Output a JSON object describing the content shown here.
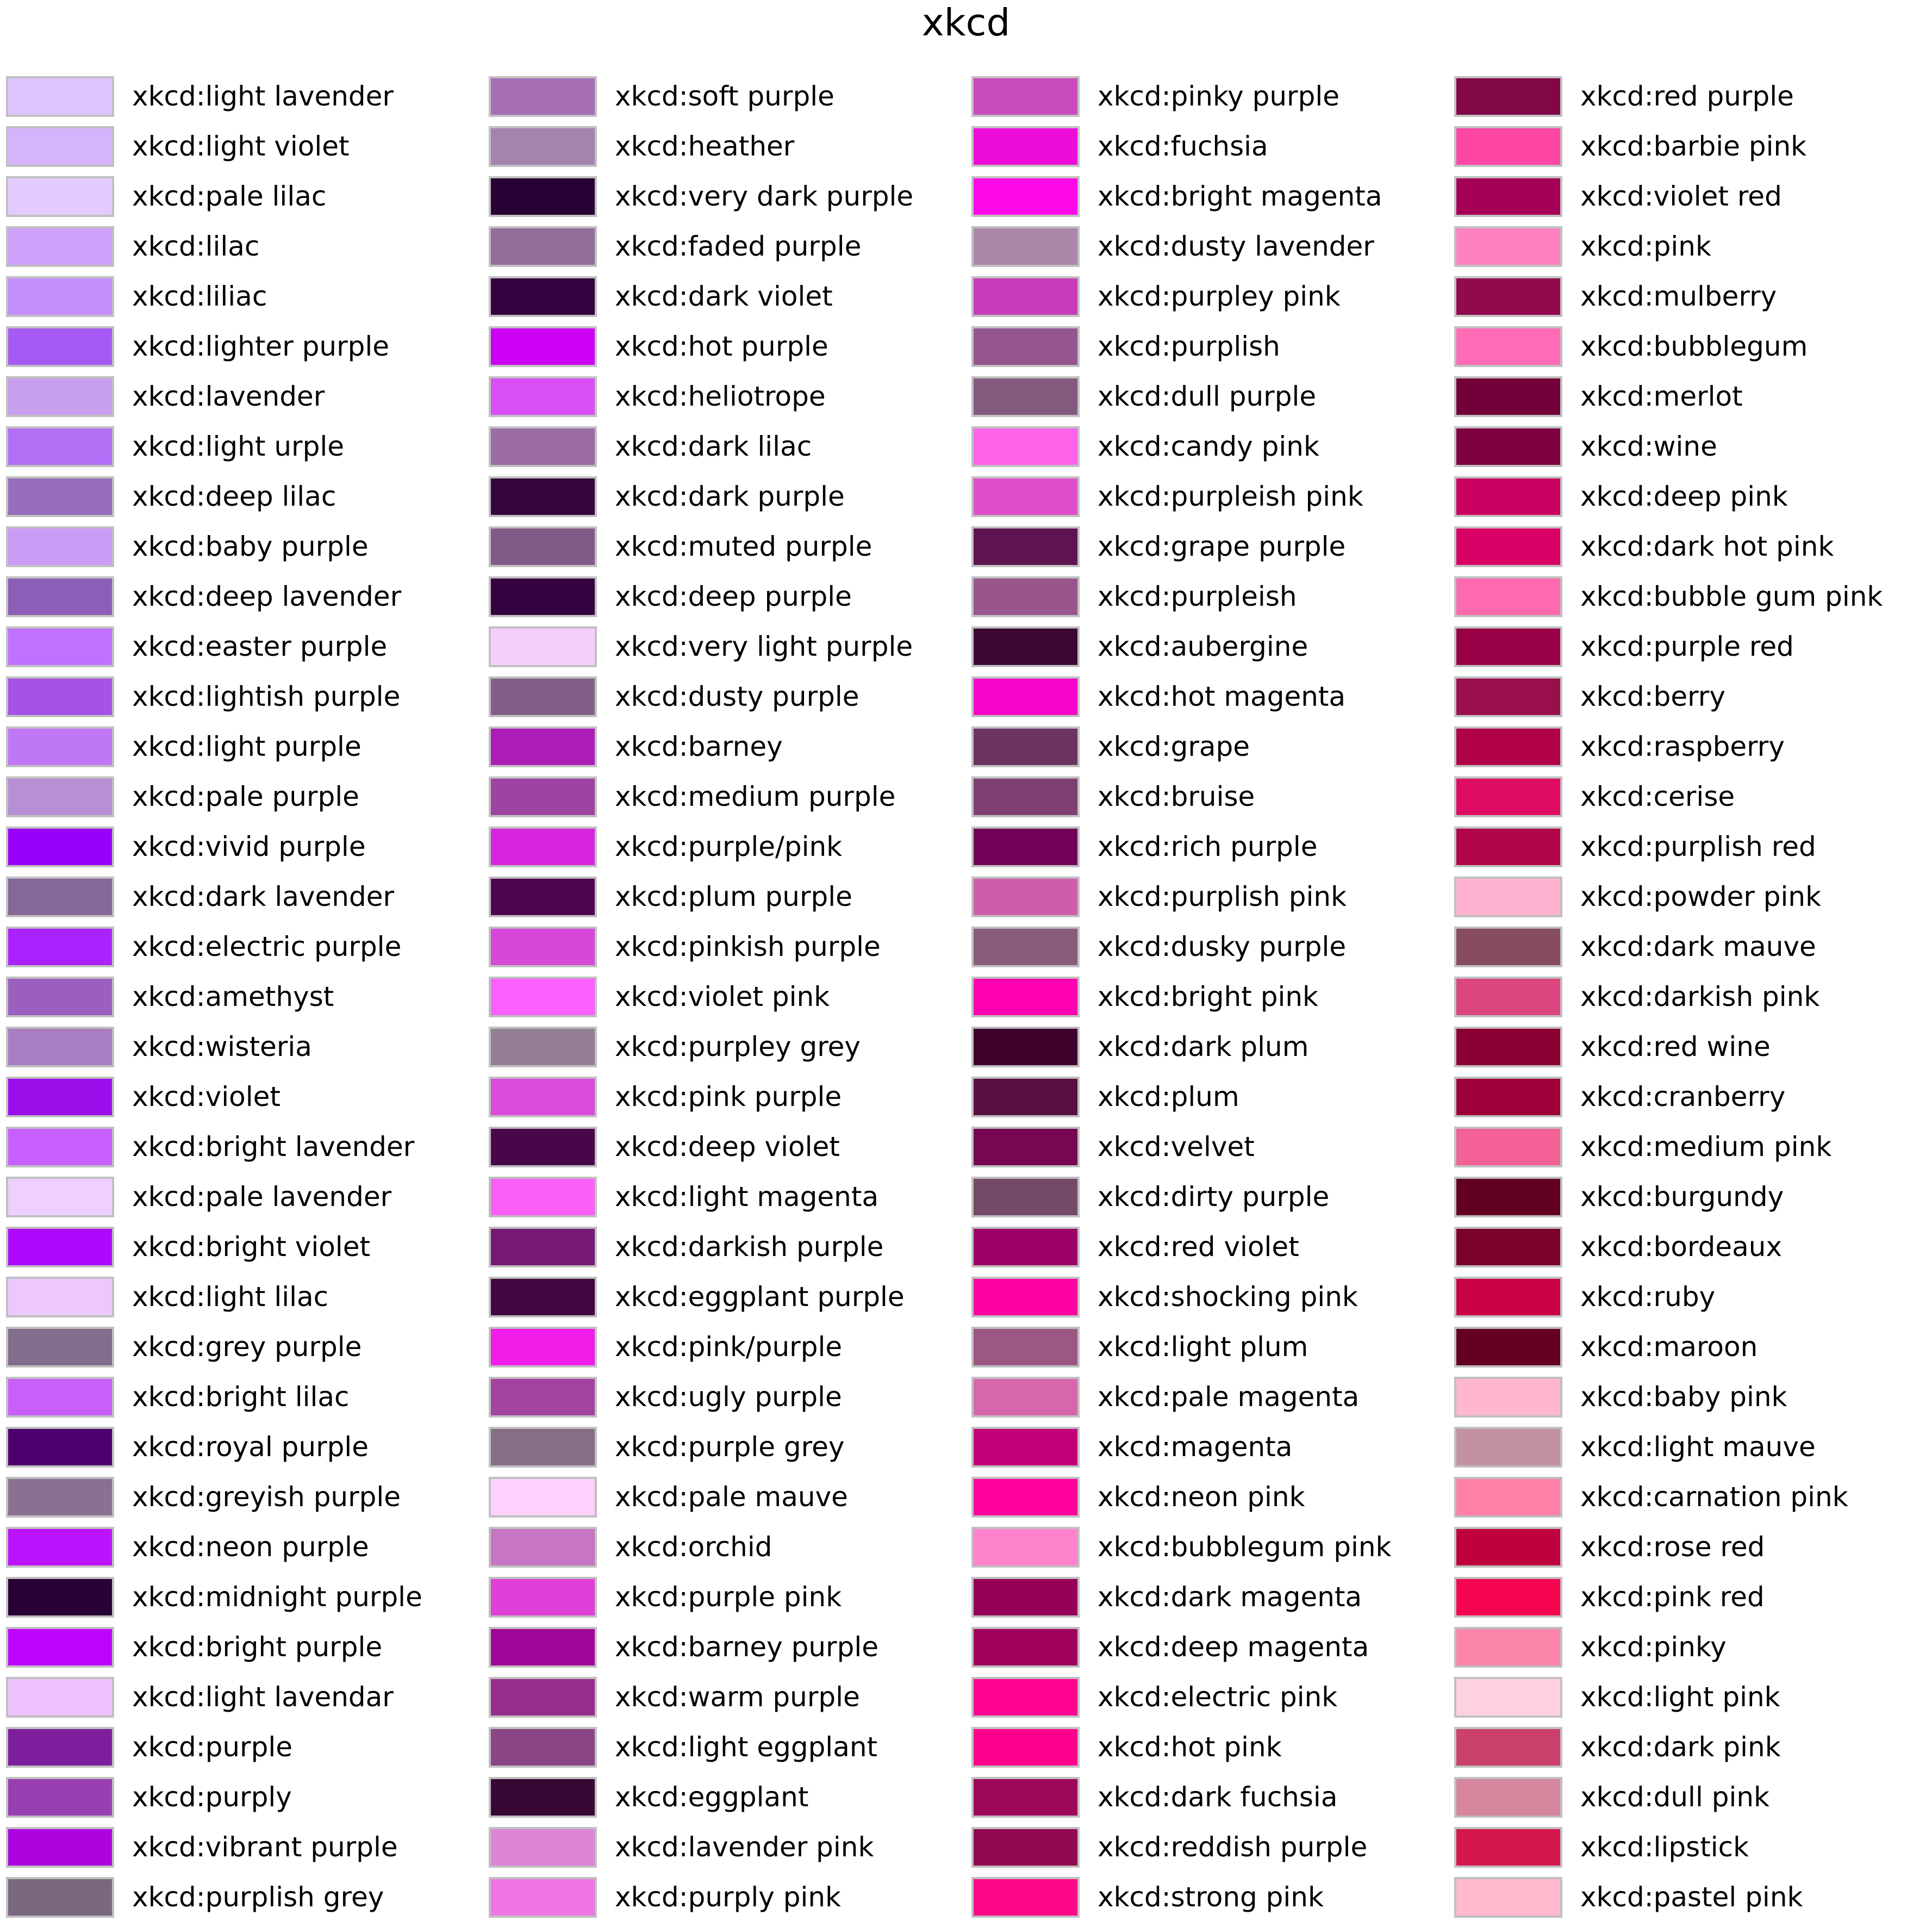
{
  "title": "xkcd",
  "chart_data": {
    "type": "table",
    "title": "xkcd",
    "columns": [
      [
        {
          "name": "xkcd:light lavender",
          "color": "#dfc5fe"
        },
        {
          "name": "xkcd:light violet",
          "color": "#d6b4fc"
        },
        {
          "name": "xkcd:pale lilac",
          "color": "#e4cbff"
        },
        {
          "name": "xkcd:lilac",
          "color": "#cea2fd"
        },
        {
          "name": "xkcd:liliac",
          "color": "#c48efd"
        },
        {
          "name": "xkcd:lighter purple",
          "color": "#a55af4"
        },
        {
          "name": "xkcd:lavender",
          "color": "#c79fef"
        },
        {
          "name": "xkcd:light urple",
          "color": "#b36ff6"
        },
        {
          "name": "xkcd:deep lilac",
          "color": "#966ebd"
        },
        {
          "name": "xkcd:baby purple",
          "color": "#ca9bf7"
        },
        {
          "name": "xkcd:deep lavender",
          "color": "#8d5eb7"
        },
        {
          "name": "xkcd:easter purple",
          "color": "#c071fe"
        },
        {
          "name": "xkcd:lightish purple",
          "color": "#a552e6"
        },
        {
          "name": "xkcd:light purple",
          "color": "#bf77f6"
        },
        {
          "name": "xkcd:pale purple",
          "color": "#b790d4"
        },
        {
          "name": "xkcd:vivid purple",
          "color": "#9900fa"
        },
        {
          "name": "xkcd:dark lavender",
          "color": "#856798"
        },
        {
          "name": "xkcd:electric purple",
          "color": "#aa23ff"
        },
        {
          "name": "xkcd:amethyst",
          "color": "#9b5fc0"
        },
        {
          "name": "xkcd:wisteria",
          "color": "#a87dc2"
        },
        {
          "name": "xkcd:violet",
          "color": "#9a0eea"
        },
        {
          "name": "xkcd:bright lavender",
          "color": "#c760ff"
        },
        {
          "name": "xkcd:pale lavender",
          "color": "#eecffe"
        },
        {
          "name": "xkcd:bright violet",
          "color": "#ad0afd"
        },
        {
          "name": "xkcd:light lilac",
          "color": "#edc8ff"
        },
        {
          "name": "xkcd:grey purple",
          "color": "#826d8c"
        },
        {
          "name": "xkcd:bright lilac",
          "color": "#c95efb"
        },
        {
          "name": "xkcd:royal purple",
          "color": "#4b006e"
        },
        {
          "name": "xkcd:greyish purple",
          "color": "#887191"
        },
        {
          "name": "xkcd:neon purple",
          "color": "#bc13fe"
        },
        {
          "name": "xkcd:midnight purple",
          "color": "#280137"
        },
        {
          "name": "xkcd:bright purple",
          "color": "#be03fd"
        },
        {
          "name": "xkcd:light lavendar",
          "color": "#efc0fe"
        },
        {
          "name": "xkcd:purple",
          "color": "#7e1e9c"
        },
        {
          "name": "xkcd:purply",
          "color": "#983fb2"
        },
        {
          "name": "xkcd:vibrant purple",
          "color": "#ad03de"
        },
        {
          "name": "xkcd:purplish grey",
          "color": "#7a687f"
        }
      ],
      [
        {
          "name": "xkcd:soft purple",
          "color": "#a66fb5"
        },
        {
          "name": "xkcd:heather",
          "color": "#a484ac"
        },
        {
          "name": "xkcd:very dark purple",
          "color": "#2a0134"
        },
        {
          "name": "xkcd:faded purple",
          "color": "#916e99"
        },
        {
          "name": "xkcd:dark violet",
          "color": "#34013f"
        },
        {
          "name": "xkcd:hot purple",
          "color": "#cb00f5"
        },
        {
          "name": "xkcd:heliotrope",
          "color": "#d94ff5"
        },
        {
          "name": "xkcd:dark lilac",
          "color": "#9c6da5"
        },
        {
          "name": "xkcd:dark purple",
          "color": "#35063e"
        },
        {
          "name": "xkcd:muted purple",
          "color": "#805b87"
        },
        {
          "name": "xkcd:deep purple",
          "color": "#36013f"
        },
        {
          "name": "xkcd:very light purple",
          "color": "#f6cefc"
        },
        {
          "name": "xkcd:dusty purple",
          "color": "#825f87"
        },
        {
          "name": "xkcd:barney",
          "color": "#ac1db8"
        },
        {
          "name": "xkcd:medium purple",
          "color": "#9e43a2"
        },
        {
          "name": "xkcd:purple/pink",
          "color": "#d725de"
        },
        {
          "name": "xkcd:plum purple",
          "color": "#4e0550"
        },
        {
          "name": "xkcd:pinkish purple",
          "color": "#d648d7"
        },
        {
          "name": "xkcd:violet pink",
          "color": "#fb5ffc"
        },
        {
          "name": "xkcd:purpley grey",
          "color": "#947e94"
        },
        {
          "name": "xkcd:pink purple",
          "color": "#db4bda"
        },
        {
          "name": "xkcd:deep violet",
          "color": "#490648"
        },
        {
          "name": "xkcd:light magenta",
          "color": "#fa5ff7"
        },
        {
          "name": "xkcd:darkish purple",
          "color": "#751973"
        },
        {
          "name": "xkcd:eggplant purple",
          "color": "#430541"
        },
        {
          "name": "xkcd:pink/purple",
          "color": "#ef1de7"
        },
        {
          "name": "xkcd:ugly purple",
          "color": "#a442a0"
        },
        {
          "name": "xkcd:purple grey",
          "color": "#866f85"
        },
        {
          "name": "xkcd:pale mauve",
          "color": "#fed0fc"
        },
        {
          "name": "xkcd:orchid",
          "color": "#c875c4"
        },
        {
          "name": "xkcd:purple pink",
          "color": "#e03fd8"
        },
        {
          "name": "xkcd:barney purple",
          "color": "#a00498"
        },
        {
          "name": "xkcd:warm purple",
          "color": "#952e8f"
        },
        {
          "name": "xkcd:light eggplant",
          "color": "#894585"
        },
        {
          "name": "xkcd:eggplant",
          "color": "#380835"
        },
        {
          "name": "xkcd:lavender pink",
          "color": "#dd85d7"
        },
        {
          "name": "xkcd:purply pink",
          "color": "#f075e6"
        }
      ],
      [
        {
          "name": "xkcd:pinky purple",
          "color": "#c94cbe"
        },
        {
          "name": "xkcd:fuchsia",
          "color": "#ed0dd9"
        },
        {
          "name": "xkcd:bright magenta",
          "color": "#ff08e8"
        },
        {
          "name": "xkcd:dusty lavender",
          "color": "#ac86a8"
        },
        {
          "name": "xkcd:purpley pink",
          "color": "#c83cb9"
        },
        {
          "name": "xkcd:purplish",
          "color": "#94568c"
        },
        {
          "name": "xkcd:dull purple",
          "color": "#84597e"
        },
        {
          "name": "xkcd:candy pink",
          "color": "#ff63e9"
        },
        {
          "name": "xkcd:purpleish pink",
          "color": "#df4ec8"
        },
        {
          "name": "xkcd:grape purple",
          "color": "#5d1451"
        },
        {
          "name": "xkcd:purpleish",
          "color": "#98568d"
        },
        {
          "name": "xkcd:aubergine",
          "color": "#3d0734"
        },
        {
          "name": "xkcd:hot magenta",
          "color": "#f504c9"
        },
        {
          "name": "xkcd:grape",
          "color": "#6c3461"
        },
        {
          "name": "xkcd:bruise",
          "color": "#7e4071"
        },
        {
          "name": "xkcd:rich purple",
          "color": "#720058"
        },
        {
          "name": "xkcd:purplish pink",
          "color": "#ce5dae"
        },
        {
          "name": "xkcd:dusky purple",
          "color": "#895b7b"
        },
        {
          "name": "xkcd:bright pink",
          "color": "#fe01b1"
        },
        {
          "name": "xkcd:dark plum",
          "color": "#3f012c"
        },
        {
          "name": "xkcd:plum",
          "color": "#580f41"
        },
        {
          "name": "xkcd:velvet",
          "color": "#750851"
        },
        {
          "name": "xkcd:dirty purple",
          "color": "#734a65"
        },
        {
          "name": "xkcd:red violet",
          "color": "#9e0168"
        },
        {
          "name": "xkcd:shocking pink",
          "color": "#fe02a2"
        },
        {
          "name": "xkcd:light plum",
          "color": "#9d5783"
        },
        {
          "name": "xkcd:pale magenta",
          "color": "#d767ad"
        },
        {
          "name": "xkcd:magenta",
          "color": "#c20078"
        },
        {
          "name": "xkcd:neon pink",
          "color": "#fe019a"
        },
        {
          "name": "xkcd:bubblegum pink",
          "color": "#fe83cc"
        },
        {
          "name": "xkcd:dark magenta",
          "color": "#960056"
        },
        {
          "name": "xkcd:deep magenta",
          "color": "#a0025c"
        },
        {
          "name": "xkcd:electric pink",
          "color": "#ff0490"
        },
        {
          "name": "xkcd:hot pink",
          "color": "#ff028d"
        },
        {
          "name": "xkcd:dark fuchsia",
          "color": "#9d0759"
        },
        {
          "name": "xkcd:reddish purple",
          "color": "#910951"
        },
        {
          "name": "xkcd:strong pink",
          "color": "#ff0789"
        }
      ],
      [
        {
          "name": "xkcd:red purple",
          "color": "#820747"
        },
        {
          "name": "xkcd:barbie pink",
          "color": "#fe46a5"
        },
        {
          "name": "xkcd:violet red",
          "color": "#a50055"
        },
        {
          "name": "xkcd:pink",
          "color": "#ff81c0"
        },
        {
          "name": "xkcd:mulberry",
          "color": "#920a4e"
        },
        {
          "name": "xkcd:bubblegum",
          "color": "#ff6cb5"
        },
        {
          "name": "xkcd:merlot",
          "color": "#730039"
        },
        {
          "name": "xkcd:wine",
          "color": "#80013f"
        },
        {
          "name": "xkcd:deep pink",
          "color": "#cb0162"
        },
        {
          "name": "xkcd:dark hot pink",
          "color": "#d90166"
        },
        {
          "name": "xkcd:bubble gum pink",
          "color": "#ff69af"
        },
        {
          "name": "xkcd:purple red",
          "color": "#990147"
        },
        {
          "name": "xkcd:berry",
          "color": "#990f4b"
        },
        {
          "name": "xkcd:raspberry",
          "color": "#b00149"
        },
        {
          "name": "xkcd:cerise",
          "color": "#de0c62"
        },
        {
          "name": "xkcd:purplish red",
          "color": "#b0054b"
        },
        {
          "name": "xkcd:powder pink",
          "color": "#ffb2d0"
        },
        {
          "name": "xkcd:dark mauve",
          "color": "#874c62"
        },
        {
          "name": "xkcd:darkish pink",
          "color": "#da467d"
        },
        {
          "name": "xkcd:red wine",
          "color": "#8c0034"
        },
        {
          "name": "xkcd:cranberry",
          "color": "#9e003a"
        },
        {
          "name": "xkcd:medium pink",
          "color": "#f36196"
        },
        {
          "name": "xkcd:burgundy",
          "color": "#610023"
        },
        {
          "name": "xkcd:bordeaux",
          "color": "#7b002c"
        },
        {
          "name": "xkcd:ruby",
          "color": "#ca0147"
        },
        {
          "name": "xkcd:maroon",
          "color": "#650021"
        },
        {
          "name": "xkcd:baby pink",
          "color": "#ffb7ce"
        },
        {
          "name": "xkcd:light mauve",
          "color": "#c292a1"
        },
        {
          "name": "xkcd:carnation pink",
          "color": "#ff7fa7"
        },
        {
          "name": "xkcd:rose red",
          "color": "#be013c"
        },
        {
          "name": "xkcd:pink red",
          "color": "#f5054f"
        },
        {
          "name": "xkcd:pinky",
          "color": "#fc86aa"
        },
        {
          "name": "xkcd:light pink",
          "color": "#ffd1df"
        },
        {
          "name": "xkcd:dark pink",
          "color": "#cb416b"
        },
        {
          "name": "xkcd:dull pink",
          "color": "#d5869d"
        },
        {
          "name": "xkcd:lipstick",
          "color": "#d5174e"
        },
        {
          "name": "xkcd:pastel pink",
          "color": "#ffbacd"
        }
      ]
    ]
  }
}
